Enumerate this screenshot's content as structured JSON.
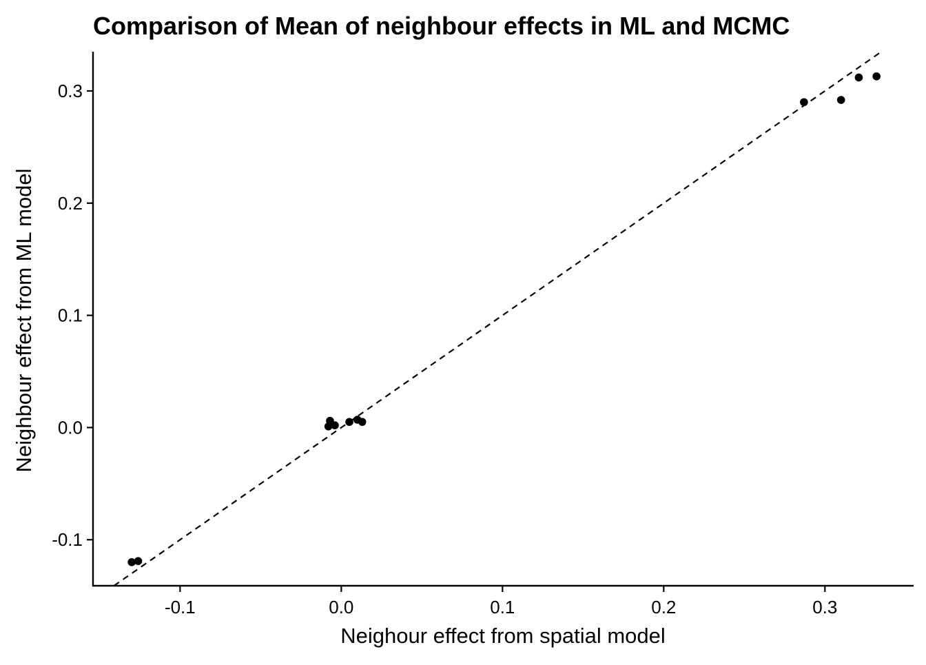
{
  "chart_data": {
    "type": "scatter",
    "title": "Comparison of Mean of neighbour effects in ML and MCMC",
    "xlabel": "Neighour effect from spatial model",
    "ylabel": "Neighbour effect from ML model",
    "xlim": [
      -0.154,
      0.355
    ],
    "ylim": [
      -0.141,
      0.335
    ],
    "x_ticks": [
      -0.1,
      0.0,
      0.1,
      0.2,
      0.3
    ],
    "x_tick_labels": [
      "-0.1",
      "0.0",
      "0.1",
      "0.2",
      "0.3"
    ],
    "y_ticks": [
      -0.1,
      0.0,
      0.1,
      0.2,
      0.3
    ],
    "y_tick_labels": [
      "-0.1",
      "0.0",
      "0.1",
      "0.2",
      "0.3"
    ],
    "grid": false,
    "legend": "none",
    "reference_line": {
      "slope": 1,
      "intercept": 0,
      "style": "dashed"
    },
    "points": [
      {
        "x": -0.13,
        "y": -0.12
      },
      {
        "x": -0.126,
        "y": -0.119
      },
      {
        "x": -0.007,
        "y": 0.006
      },
      {
        "x": -0.008,
        "y": 0.001
      },
      {
        "x": -0.004,
        "y": 0.002
      },
      {
        "x": 0.005,
        "y": 0.005
      },
      {
        "x": 0.01,
        "y": 0.007
      },
      {
        "x": 0.013,
        "y": 0.005
      },
      {
        "x": 0.287,
        "y": 0.29
      },
      {
        "x": 0.31,
        "y": 0.292
      },
      {
        "x": 0.321,
        "y": 0.312
      },
      {
        "x": 0.332,
        "y": 0.313
      }
    ],
    "colors": {
      "points": "#000000",
      "axis": "#000000",
      "line": "#000000"
    }
  }
}
